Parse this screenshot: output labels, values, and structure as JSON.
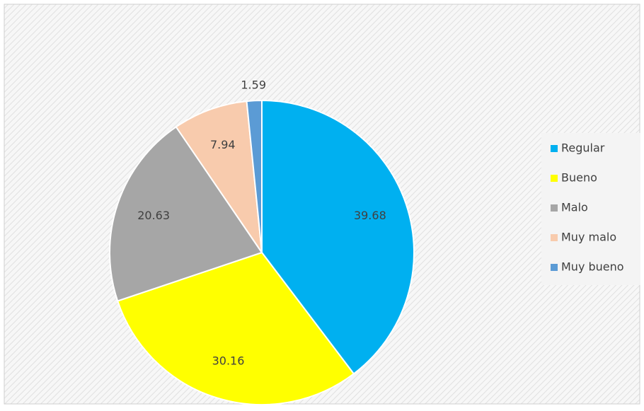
{
  "chart_data": {
    "type": "pie",
    "categories": [
      "Regular",
      "Bueno",
      "Malo",
      "Muy malo",
      "Muy bueno"
    ],
    "values": [
      39.68,
      30.16,
      20.63,
      7.94,
      1.59
    ],
    "colors": [
      "#00b0f0",
      "#ffff00",
      "#a6a6a6",
      "#f8cbad",
      "#5b9bd5"
    ],
    "legend": "right"
  }
}
